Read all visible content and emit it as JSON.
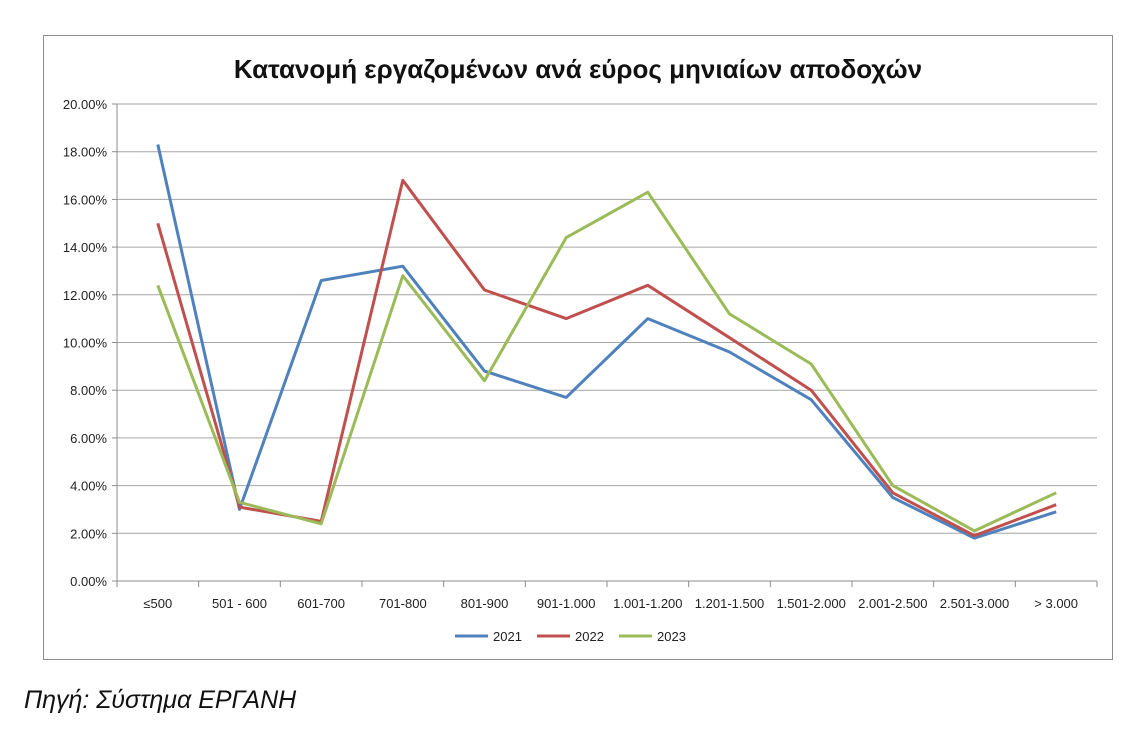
{
  "chart_data": {
    "type": "line",
    "title": "Κατανομή εργαζομένων ανά εύρος μηνιαίων αποδοχών",
    "xlabel": "",
    "ylabel": "",
    "categories": [
      "≤500",
      "501 - 600",
      "601-700",
      "701-800",
      "801-900",
      "901-1.000",
      "1.001-1.200",
      "1.201-1.500",
      "1.501-2.000",
      "2.001-2.500",
      "2.501-3.000",
      "> 3.000"
    ],
    "y_ticks": [
      "0.00%",
      "2.00%",
      "4.00%",
      "6.00%",
      "8.00%",
      "10.00%",
      "12.00%",
      "14.00%",
      "16.00%",
      "18.00%",
      "20.00%"
    ],
    "ylim": [
      0,
      20
    ],
    "grid": true,
    "legend_position": "bottom",
    "series": [
      {
        "name": "2021",
        "color": "#4f81bd",
        "values": [
          18.3,
          3.0,
          12.6,
          13.2,
          8.8,
          7.7,
          11.0,
          9.6,
          7.6,
          3.5,
          1.8,
          2.9
        ]
      },
      {
        "name": "2022",
        "color": "#c0504d",
        "values": [
          15.0,
          3.1,
          2.5,
          16.8,
          12.2,
          11.0,
          12.4,
          10.2,
          8.0,
          3.7,
          1.9,
          3.2
        ]
      },
      {
        "name": "2023",
        "color": "#9bbb59",
        "values": [
          12.4,
          3.3,
          2.4,
          12.8,
          8.4,
          14.4,
          16.3,
          11.2,
          9.1,
          4.0,
          2.1,
          3.7
        ]
      }
    ]
  },
  "source_note": "Πηγή: Σύστημα ΕΡΓΑΝΗ"
}
